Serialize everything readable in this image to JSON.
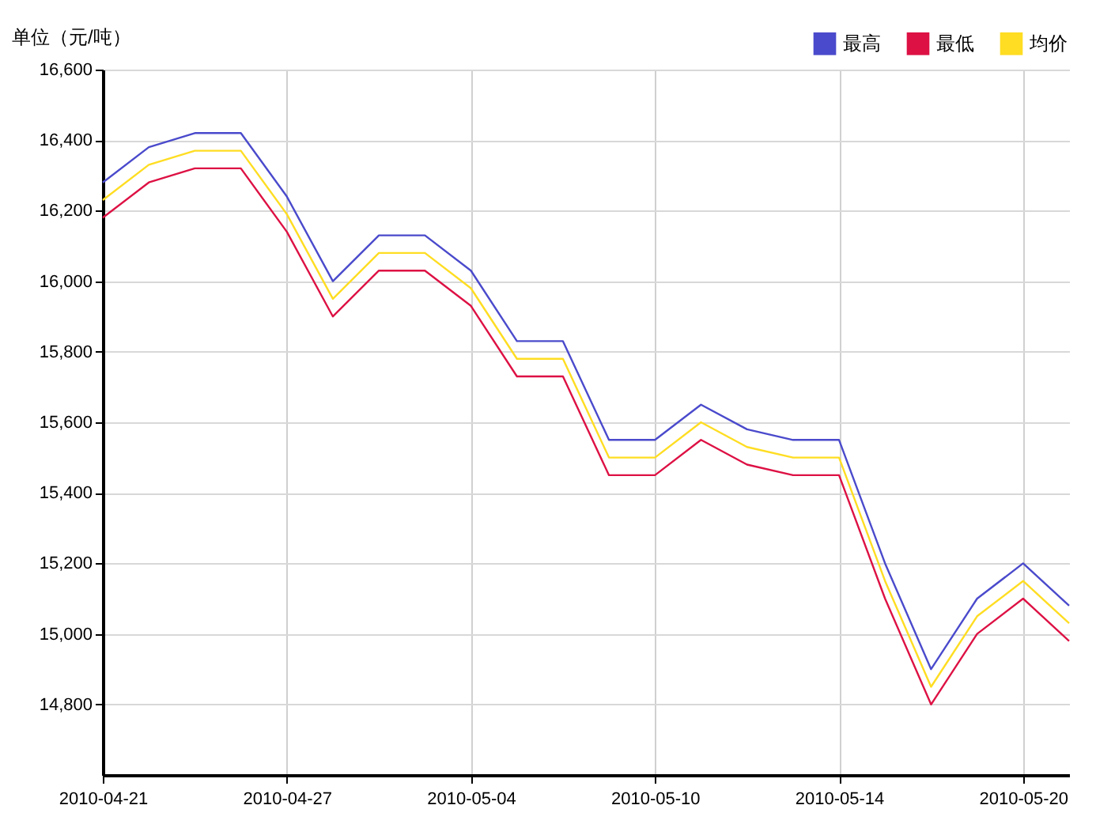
{
  "chart_data": {
    "type": "line",
    "ylabel": "单位（元/吨）",
    "categories": [
      "2010-04-21",
      null,
      null,
      null,
      "2010-04-27",
      null,
      null,
      null,
      "2010-05-04",
      null,
      null,
      null,
      "2010-05-10",
      null,
      null,
      null,
      "2010-05-14",
      null,
      null,
      null,
      "2010-05-20",
      null
    ],
    "series": [
      {
        "name": "最高",
        "color": "#4a4acc",
        "values": [
          16280,
          16380,
          16420,
          16420,
          16240,
          16000,
          16130,
          16130,
          16030,
          15830,
          15830,
          15550,
          15550,
          15650,
          15580,
          15550,
          15550,
          15200,
          14900,
          15100,
          15200,
          15080
        ]
      },
      {
        "name": "最低",
        "color": "#dd1144",
        "values": [
          16180,
          16280,
          16320,
          16320,
          16140,
          15900,
          16030,
          16030,
          15930,
          15730,
          15730,
          15450,
          15450,
          15550,
          15480,
          15450,
          15450,
          15100,
          14800,
          15000,
          15100,
          14980
        ]
      },
      {
        "name": "均价",
        "color": "#ffdd22",
        "values": [
          16230,
          16330,
          16370,
          16370,
          16190,
          15950,
          16080,
          16080,
          15980,
          15780,
          15780,
          15500,
          15500,
          15600,
          15530,
          15500,
          15500,
          15150,
          14850,
          15050,
          15150,
          15030
        ]
      }
    ],
    "ylim": [
      14600,
      16600
    ],
    "yticks": [
      {
        "value": 14800,
        "label": "14,800"
      },
      {
        "value": 15000,
        "label": "15,000"
      },
      {
        "value": 15200,
        "label": "15,200"
      },
      {
        "value": 15400,
        "label": "15,400"
      },
      {
        "value": 15600,
        "label": "15,600"
      },
      {
        "value": 15800,
        "label": "15,800"
      },
      {
        "value": 16000,
        "label": "16,000"
      },
      {
        "value": 16200,
        "label": "16,200"
      },
      {
        "value": 16400,
        "label": "16,400"
      },
      {
        "value": 16600,
        "label": "16,600"
      }
    ],
    "grid": true,
    "legend": "top right"
  }
}
